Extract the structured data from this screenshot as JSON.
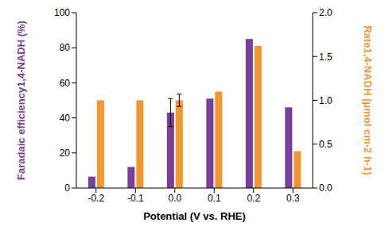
{
  "chart_data": {
    "type": "bar",
    "xlabel": "Potential (V vs. RHE)",
    "ylabel": "Faradaic efficiency1,4-NADH (%)",
    "y2label": "Rate1,4-NADH (μmol cm-2 h-1)",
    "categories": [
      "-0.2",
      "-0.1",
      "0.0",
      "0.1",
      "0.2",
      "0.3"
    ],
    "series": [
      {
        "color": "#7b3f98",
        "values": [
          6.5,
          12,
          43,
          51,
          85,
          46
        ],
        "errors": [
          null,
          null,
          8,
          null,
          null,
          null
        ]
      },
      {
        "color": "#f2962e",
        "axis": "y2",
        "values": [
          1.0,
          1.0,
          1.0,
          1.1,
          1.62,
          0.42
        ],
        "errors": [
          null,
          null,
          0.07,
          null,
          null,
          null
        ]
      }
    ],
    "ylim": [
      0,
      100
    ],
    "yticks": [
      0,
      20,
      40,
      60,
      80,
      100
    ],
    "y2lim": [
      0,
      2
    ],
    "y2ticks": [
      {
        "value": 0,
        "label": "0.0"
      },
      {
        "value": 0.5,
        "label": "0.5"
      },
      {
        "value": 1,
        "label": "1.0"
      },
      {
        "value": 1.5,
        "label": "1.5"
      },
      {
        "value": 2,
        "label": "2.0"
      }
    ],
    "grid": false
  }
}
